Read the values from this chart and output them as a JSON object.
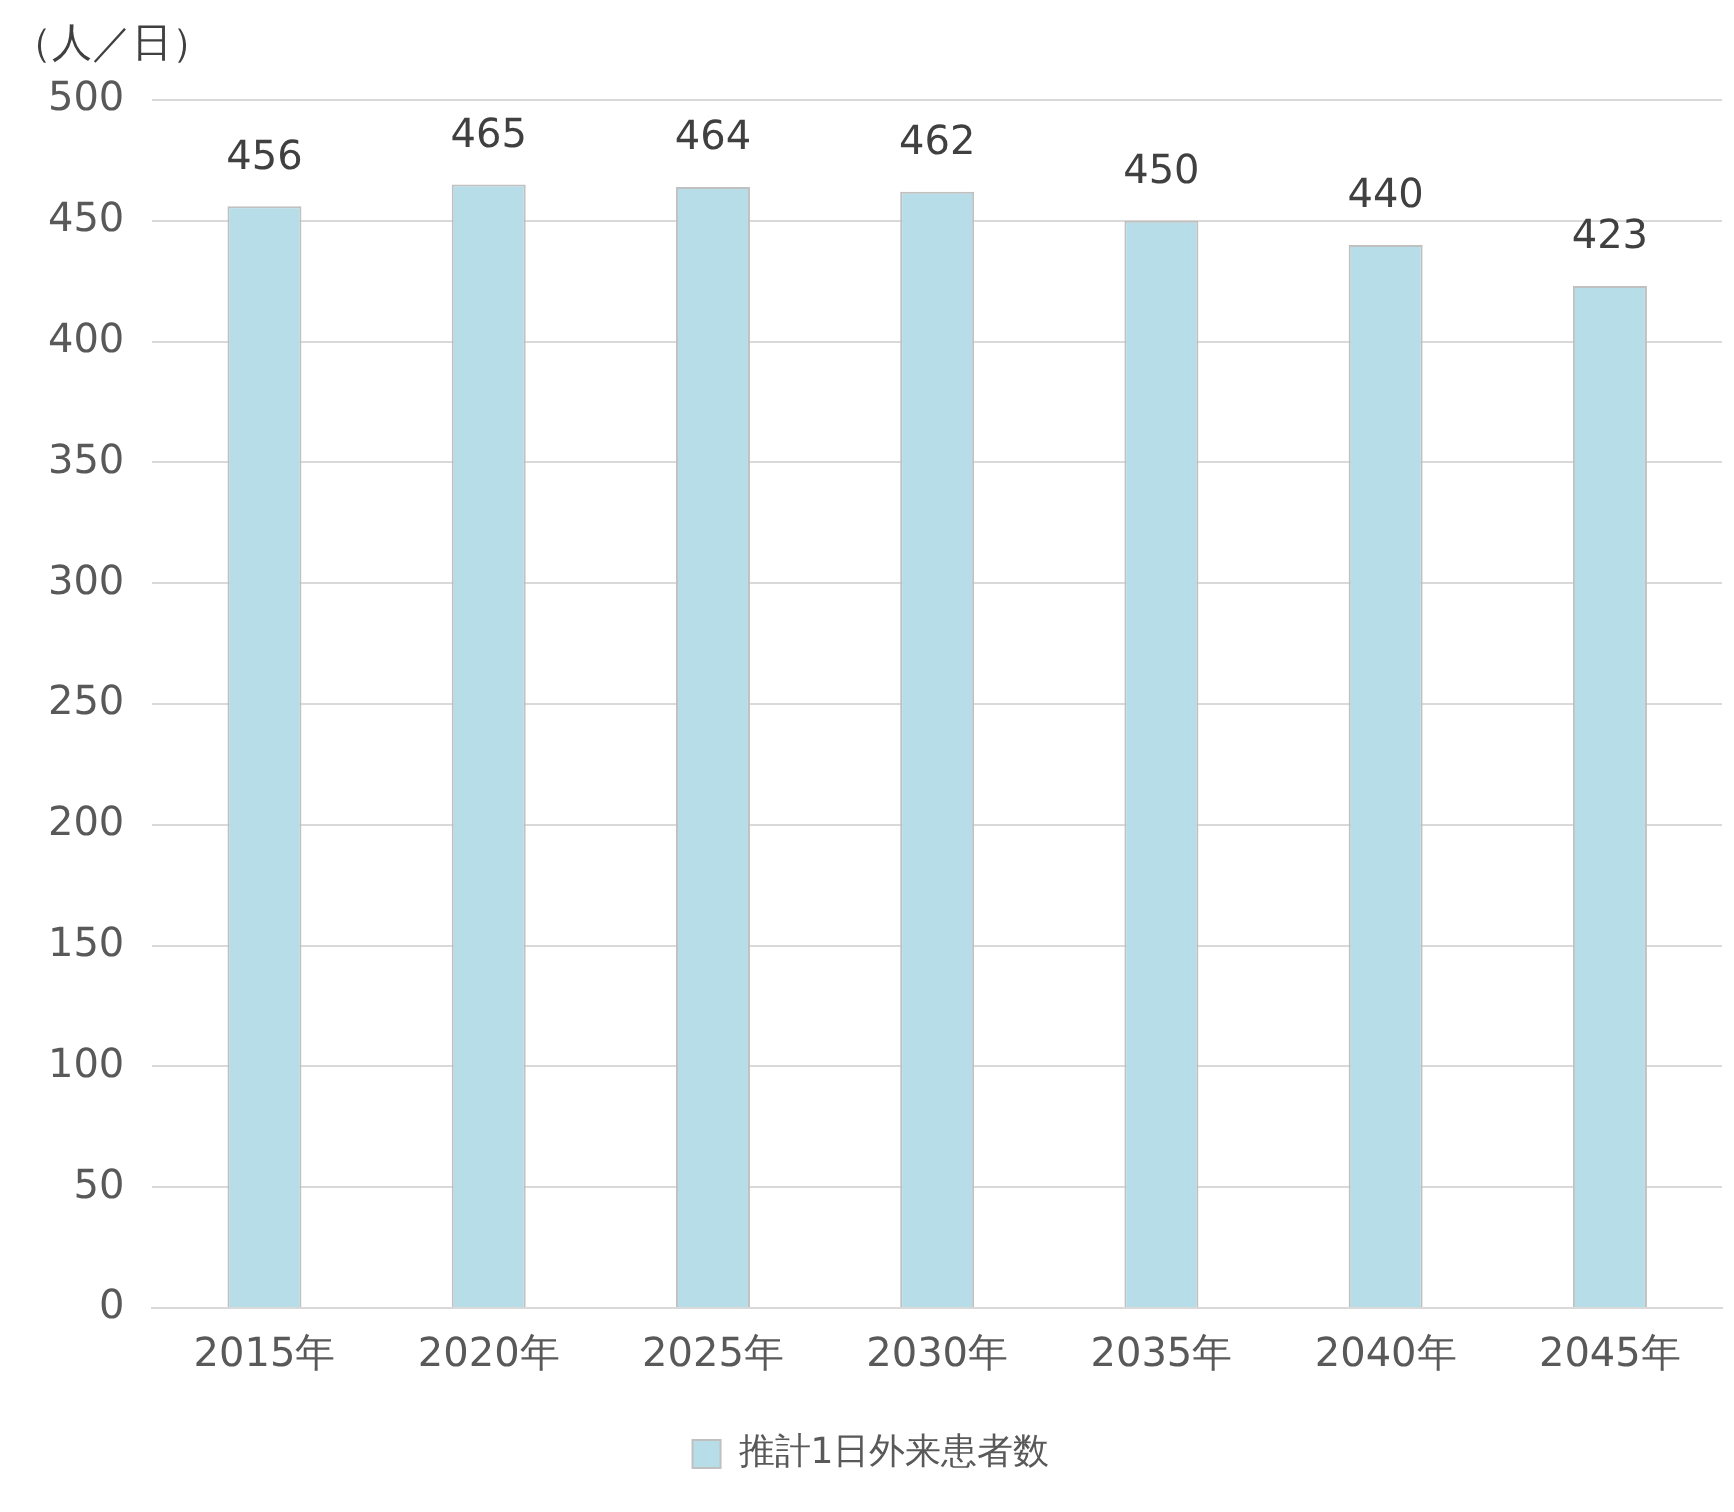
{
  "chart_data": {
    "type": "bar",
    "ylabel": "（人／日）",
    "categories": [
      "2015年",
      "2020年",
      "2025年",
      "2030年",
      "2035年",
      "2040年",
      "2045年"
    ],
    "series": [
      {
        "name": "推計1日外来患者数",
        "color": "#b7dde8",
        "values": [
          456,
          465,
          464,
          462,
          450,
          440,
          423
        ]
      }
    ],
    "ylim": [
      0,
      500
    ],
    "yticks": [
      0,
      50,
      100,
      150,
      200,
      250,
      300,
      350,
      400,
      450,
      500
    ],
    "grid": "y",
    "legend": "bottom",
    "data_labels": true
  }
}
